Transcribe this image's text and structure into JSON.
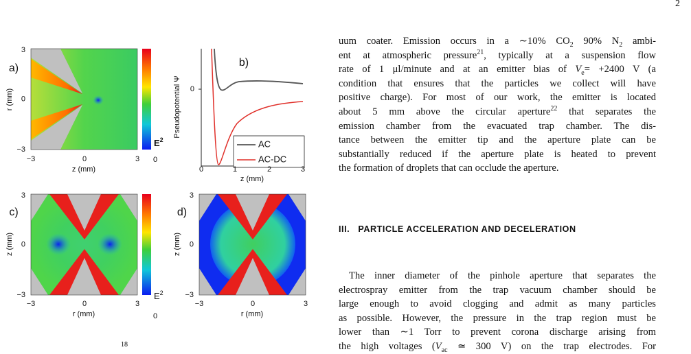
{
  "page_number": "2",
  "figure": {
    "panels": [
      {
        "label": "a)",
        "xlabel": "z (mm)",
        "ylabel": "r (mm)",
        "xticks": [
          "−3",
          "0",
          "3"
        ],
        "yticks": [
          "3",
          "0",
          "−3"
        ],
        "colorbar": {
          "label": "E",
          "sup": "2",
          "tick": "0"
        }
      },
      {
        "label": "b)",
        "xlabel": "z (mm)",
        "ylabel": "Pseudopotential Ψ",
        "xticks": [
          "0",
          "1",
          "2",
          "3"
        ],
        "yticks": [
          "0"
        ],
        "legend": [
          "AC",
          "AC-DC"
        ]
      },
      {
        "label": "c)",
        "xlabel": "r (mm)",
        "ylabel": "z (mm)",
        "xticks": [
          "−3",
          "0",
          "3"
        ],
        "yticks": [
          "3",
          "0",
          "−3"
        ],
        "colorbar": {
          "label": "E",
          "sup": "2",
          "tick": "0"
        }
      },
      {
        "label": "d)",
        "xlabel": "r (mm)",
        "ylabel": "z (mm)",
        "xticks": [
          "−3",
          "0",
          "3"
        ],
        "yticks": [
          "3",
          "0",
          "−3"
        ]
      }
    ]
  },
  "column": {
    "paragraph1": [
      [
        "uum coater. Emission occurs in a ∼10% CO",
        {
          "sub": "2"
        },
        " 90% N",
        {
          "sub": "2"
        },
        " ambi-"
      ],
      [
        "ent at atmospheric pressure",
        {
          "sup": "21"
        },
        ", typically at a suspension flow"
      ],
      [
        "rate of 1 μl/minute and at an emitter bias of ",
        {
          "i": "V"
        },
        {
          "sub": "e"
        },
        "= +2400 V (a"
      ],
      [
        "condition that ensures that the particles we collect will have"
      ],
      [
        "positive charge). For most of our work, the emitter is located"
      ],
      [
        "about 5 mm above the circular aperture",
        {
          "sup": "22"
        },
        " that separates the"
      ],
      [
        "emission chamber from the evacuated trap chamber. The dis-"
      ],
      [
        "tance between the emitter tip and the aperture plate can be"
      ],
      [
        "substantially reduced if the aperture plate is heated to prevent"
      ],
      [
        "the formation of droplets that can occlude the aperture."
      ]
    ],
    "heading": {
      "number": "III.",
      "title": "PARTICLE ACCELERATION AND DECELERATION"
    },
    "paragraph2": [
      [
        "The inner diameter of the pinhole aperture that separates the"
      ],
      [
        "electrospray emitter from the trap vacuum chamber should be"
      ],
      [
        "large enough to avoid clogging and admit as many particles"
      ],
      [
        "as possible. However, the pressure in the trap region must be"
      ],
      [
        "lower than ∼1 Torr to prevent corona discharge arising from"
      ],
      [
        "the high voltages (",
        {
          "i": "V"
        },
        {
          "sub": "ac"
        },
        " ≃ 300 V) on the trap electrodes. For"
      ]
    ]
  },
  "footnote_fragment": "18"
}
